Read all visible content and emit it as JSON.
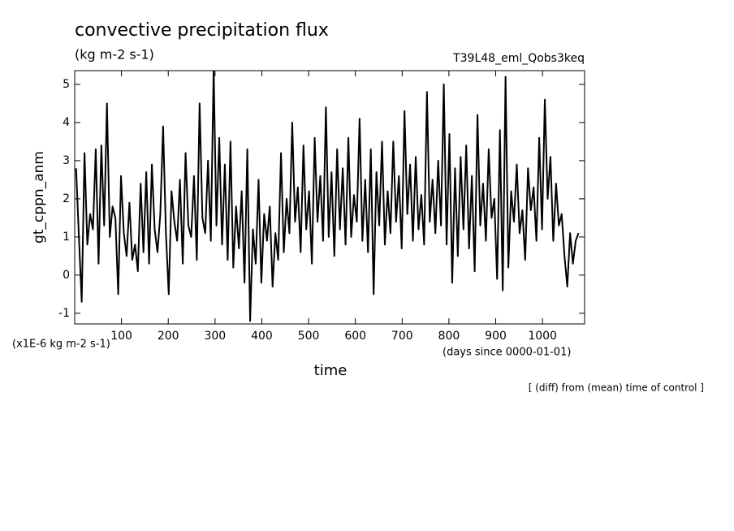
{
  "chart_data": {
    "type": "line",
    "title": "convective precipitation flux",
    "subtitle": "(kg m-2 s-1)",
    "experiment": "T39L48_eml_Qobs3keq",
    "ylabel": "gt_cppn_anm",
    "yunit": "(x1E-6 kg m-2 s-1)",
    "xunit": "(days since 0000-01-01)",
    "xlabel": "time",
    "note": "[ (diff) from (mean) time of control ]",
    "xlim": [
      0,
      1090
    ],
    "ylim": [
      -1.28,
      5.36
    ],
    "xticks": [
      100,
      200,
      300,
      400,
      500,
      600,
      700,
      800,
      900,
      1000
    ],
    "yticks": [
      -1,
      0,
      1,
      2,
      3,
      4,
      5
    ],
    "series": [
      {
        "name": "gt_cppn_anm",
        "color": "#000000",
        "x": [
          3,
          9,
          15,
          21,
          27,
          33,
          39,
          45,
          51,
          57,
          63,
          69,
          75,
          81,
          87,
          93,
          99,
          105,
          111,
          117,
          123,
          129,
          135,
          141,
          147,
          153,
          159,
          165,
          171,
          177,
          183,
          189,
          195,
          201,
          207,
          213,
          219,
          225,
          231,
          237,
          243,
          249,
          255,
          261,
          267,
          273,
          279,
          285,
          291,
          297,
          303,
          309,
          315,
          321,
          327,
          333,
          339,
          345,
          351,
          357,
          363,
          369,
          375,
          381,
          387,
          393,
          399,
          405,
          411,
          417,
          423,
          429,
          435,
          441,
          447,
          453,
          459,
          465,
          471,
          477,
          483,
          489,
          495,
          501,
          507,
          513,
          519,
          525,
          531,
          537,
          543,
          549,
          555,
          561,
          567,
          573,
          579,
          585,
          591,
          597,
          603,
          609,
          615,
          621,
          627,
          633,
          639,
          645,
          651,
          657,
          663,
          669,
          675,
          681,
          687,
          693,
          699,
          705,
          711,
          717,
          723,
          729,
          735,
          741,
          747,
          753,
          759,
          765,
          771,
          777,
          783,
          789,
          795,
          801,
          807,
          813,
          819,
          825,
          831,
          837,
          843,
          849,
          855,
          861,
          867,
          873,
          879,
          885,
          891,
          897,
          903,
          909,
          915,
          921,
          927,
          933,
          939,
          945,
          951,
          957,
          963,
          969,
          975,
          981,
          987,
          993,
          999,
          1005,
          1011,
          1017,
          1023,
          1029,
          1035,
          1041,
          1047,
          1053,
          1059,
          1065,
          1071,
          1077
        ],
        "values": [
          2.8,
          1.0,
          -0.7,
          3.2,
          0.8,
          1.6,
          1.2,
          3.3,
          0.3,
          3.4,
          1.3,
          4.5,
          1.0,
          1.8,
          1.5,
          -0.5,
          2.6,
          1.1,
          0.5,
          1.9,
          0.4,
          0.8,
          0.1,
          2.4,
          0.6,
          2.7,
          0.3,
          2.9,
          1.2,
          0.6,
          1.6,
          3.9,
          1.1,
          -0.5,
          2.2,
          1.4,
          0.9,
          2.5,
          0.3,
          3.2,
          1.3,
          1.0,
          2.6,
          0.4,
          4.5,
          1.5,
          1.1,
          3.0,
          0.9,
          5.4,
          1.3,
          3.6,
          0.8,
          2.9,
          0.4,
          3.5,
          0.2,
          1.8,
          0.7,
          2.2,
          -0.2,
          3.3,
          -1.2,
          1.2,
          0.3,
          2.5,
          -0.2,
          1.6,
          0.9,
          1.8,
          -0.3,
          1.1,
          0.4,
          3.2,
          0.6,
          2.0,
          1.1,
          4.0,
          1.4,
          2.3,
          0.6,
          3.4,
          1.2,
          2.2,
          0.3,
          3.6,
          1.4,
          2.6,
          0.9,
          4.4,
          1.0,
          2.7,
          0.5,
          3.3,
          1.2,
          2.8,
          0.8,
          3.6,
          1.0,
          2.1,
          1.4,
          4.1,
          0.9,
          2.5,
          0.6,
          3.3,
          -0.5,
          2.7,
          1.3,
          3.5,
          0.8,
          2.2,
          1.1,
          3.5,
          1.4,
          2.6,
          0.7,
          4.3,
          1.6,
          2.9,
          0.9,
          3.1,
          1.2,
          2.1,
          0.8,
          4.8,
          1.4,
          2.5,
          1.1,
          3.0,
          1.3,
          5.0,
          0.8,
          3.7,
          -0.2,
          2.8,
          0.5,
          3.1,
          1.2,
          3.4,
          0.7,
          2.6,
          0.1,
          4.2,
          1.3,
          2.4,
          0.9,
          3.3,
          1.5,
          2.0,
          -0.1,
          3.8,
          -0.4,
          5.2,
          0.2,
          2.2,
          1.4,
          2.9,
          1.1,
          1.7,
          0.4,
          2.8,
          1.7,
          2.3,
          0.9,
          3.6,
          1.2,
          4.6,
          2.0,
          3.1,
          0.9,
          2.4,
          1.3,
          1.6,
          0.5,
          -0.3,
          1.1,
          0.3,
          0.9,
          1.1
        ]
      }
    ]
  }
}
